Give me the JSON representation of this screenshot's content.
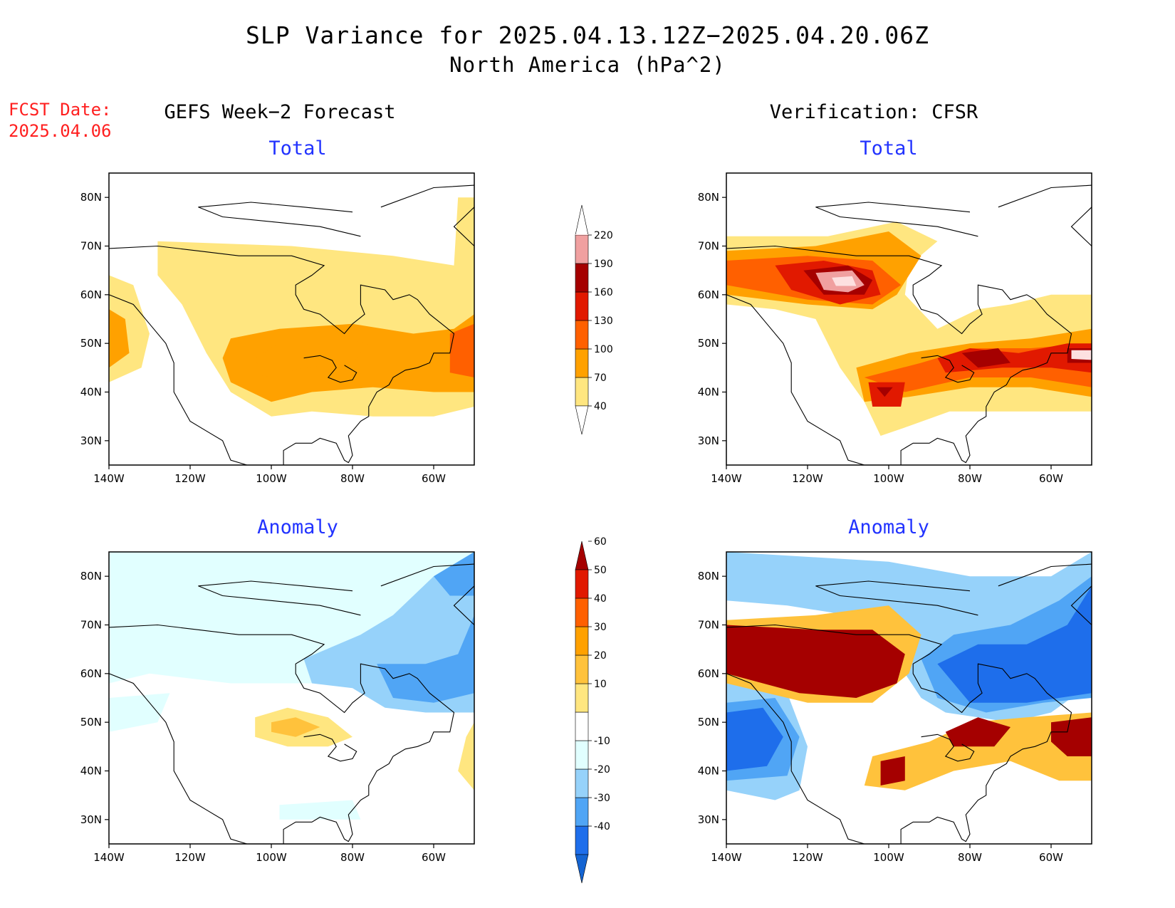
{
  "title": "SLP Variance for 2025.04.13.12Z−2025.04.20.06Z",
  "subtitle": "North America (hPa^2)",
  "fcst_label": "FCST Date:",
  "fcst_date": "2025.04.06",
  "columns": {
    "left": "GEFS Week−2 Forecast",
    "right": "Verification: CFSR"
  },
  "panel_titles": {
    "total": "Total",
    "anomaly": "Anomaly"
  },
  "axes": {
    "lat_ticks": [
      "80N",
      "70N",
      "60N",
      "50N",
      "40N",
      "30N"
    ],
    "lon_ticks": [
      "140W",
      "120W",
      "100W",
      "80W",
      "60W"
    ],
    "lat_range": [
      25,
      85
    ],
    "lon_range": [
      -140,
      -50
    ]
  },
  "colorbars": {
    "total": {
      "levels": [
        "40",
        "70",
        "100",
        "130",
        "160",
        "190",
        "220"
      ],
      "colors": [
        "#ffe680",
        "#ffa100",
        "#ff6000",
        "#e11900",
        "#a50000",
        "#f0a0a0",
        "#fde0e0"
      ]
    },
    "anomaly": {
      "levels": [
        "-40",
        "-30",
        "-20",
        "-10",
        "10",
        "20",
        "30",
        "40",
        "50",
        "60"
      ],
      "colors": [
        "#1464d2",
        "#1e6eeb",
        "#50a5f5",
        "#96d2fa",
        "#e1ffff",
        "#ffffff",
        "#ffe680",
        "#ffc23c",
        "#ffa100",
        "#ff6000",
        "#e11900",
        "#a50000"
      ]
    }
  },
  "chart_data": [
    {
      "type": "heatmap",
      "title": "Total",
      "column": "GEFS Week−2 Forecast",
      "units": "hPa^2",
      "regions": [
        {
          "lon": -92,
          "lat": 48,
          "value": 70
        },
        {
          "lon": -52,
          "lat": 47,
          "value": 100
        },
        {
          "lon": -138,
          "lat": 50,
          "value": 70
        }
      ]
    },
    {
      "type": "heatmap",
      "title": "Total",
      "column": "Verification: CFSR",
      "units": "hPa^2",
      "regions": [
        {
          "lon": -110,
          "lat": 62,
          "value": 220
        },
        {
          "lon": -75,
          "lat": 47,
          "value": 160
        },
        {
          "lon": -53,
          "lat": 48,
          "value": 220
        },
        {
          "lon": -102,
          "lat": 40,
          "value": 160
        }
      ]
    },
    {
      "type": "heatmap",
      "title": "Anomaly",
      "column": "GEFS Week−2 Forecast",
      "units": "hPa^2",
      "regions": [
        {
          "lon": -92,
          "lat": 50,
          "value": 20
        },
        {
          "lon": -70,
          "lat": 60,
          "value": -30
        },
        {
          "lon": -55,
          "lat": 72,
          "value": -30
        }
      ]
    },
    {
      "type": "heatmap",
      "title": "Anomaly",
      "column": "Verification: CFSR",
      "units": "hPa^2",
      "regions": [
        {
          "lon": -115,
          "lat": 64,
          "value": 60
        },
        {
          "lon": -75,
          "lat": 47,
          "value": 60
        },
        {
          "lon": -100,
          "lat": 40,
          "value": 60
        },
        {
          "lon": -55,
          "lat": 47,
          "value": 60
        },
        {
          "lon": -130,
          "lat": 48,
          "value": -40
        },
        {
          "lon": -65,
          "lat": 65,
          "value": -40
        }
      ]
    }
  ]
}
